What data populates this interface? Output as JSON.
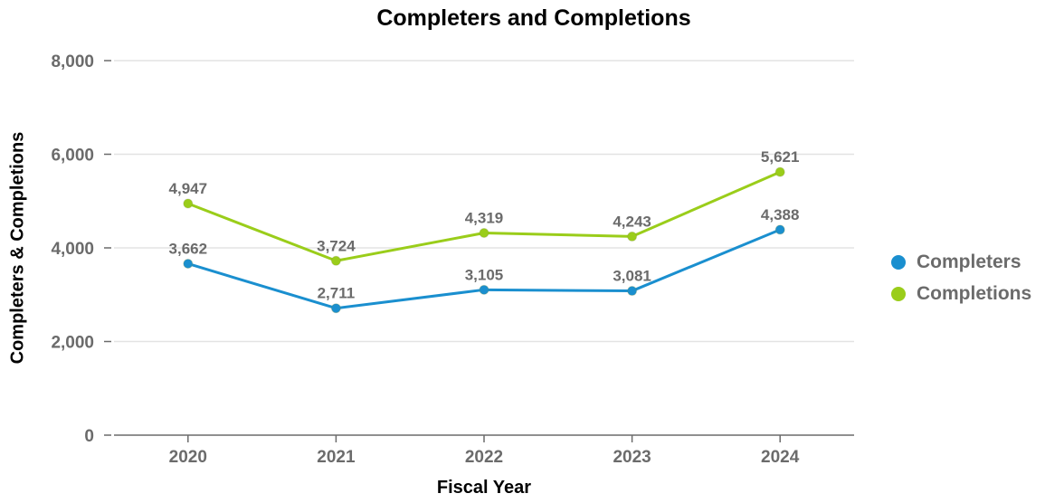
{
  "chart_data": {
    "type": "line",
    "title": "Completers and Completions",
    "xlabel": "Fiscal Year",
    "ylabel": "Completers & Completions",
    "categories": [
      "2020",
      "2021",
      "2022",
      "2023",
      "2024"
    ],
    "yticks": [
      0,
      2000,
      4000,
      6000,
      8000
    ],
    "ytick_labels": [
      "0",
      "2,000",
      "4,000",
      "6,000",
      "8,000"
    ],
    "ylim": [
      0,
      8000
    ],
    "grid": true,
    "legend_position": "right",
    "series": [
      {
        "name": "Completers",
        "color": "#1a8fcf",
        "values": [
          3662,
          2711,
          3105,
          3081,
          4388
        ],
        "labels": [
          "3,662",
          "2,711",
          "3,105",
          "3,081",
          "4,388"
        ]
      },
      {
        "name": "Completions",
        "color": "#9acd1a",
        "values": [
          4947,
          3724,
          4319,
          4243,
          5621
        ],
        "labels": [
          "4,947",
          "3,724",
          "4,319",
          "4,243",
          "5,621"
        ]
      }
    ]
  }
}
